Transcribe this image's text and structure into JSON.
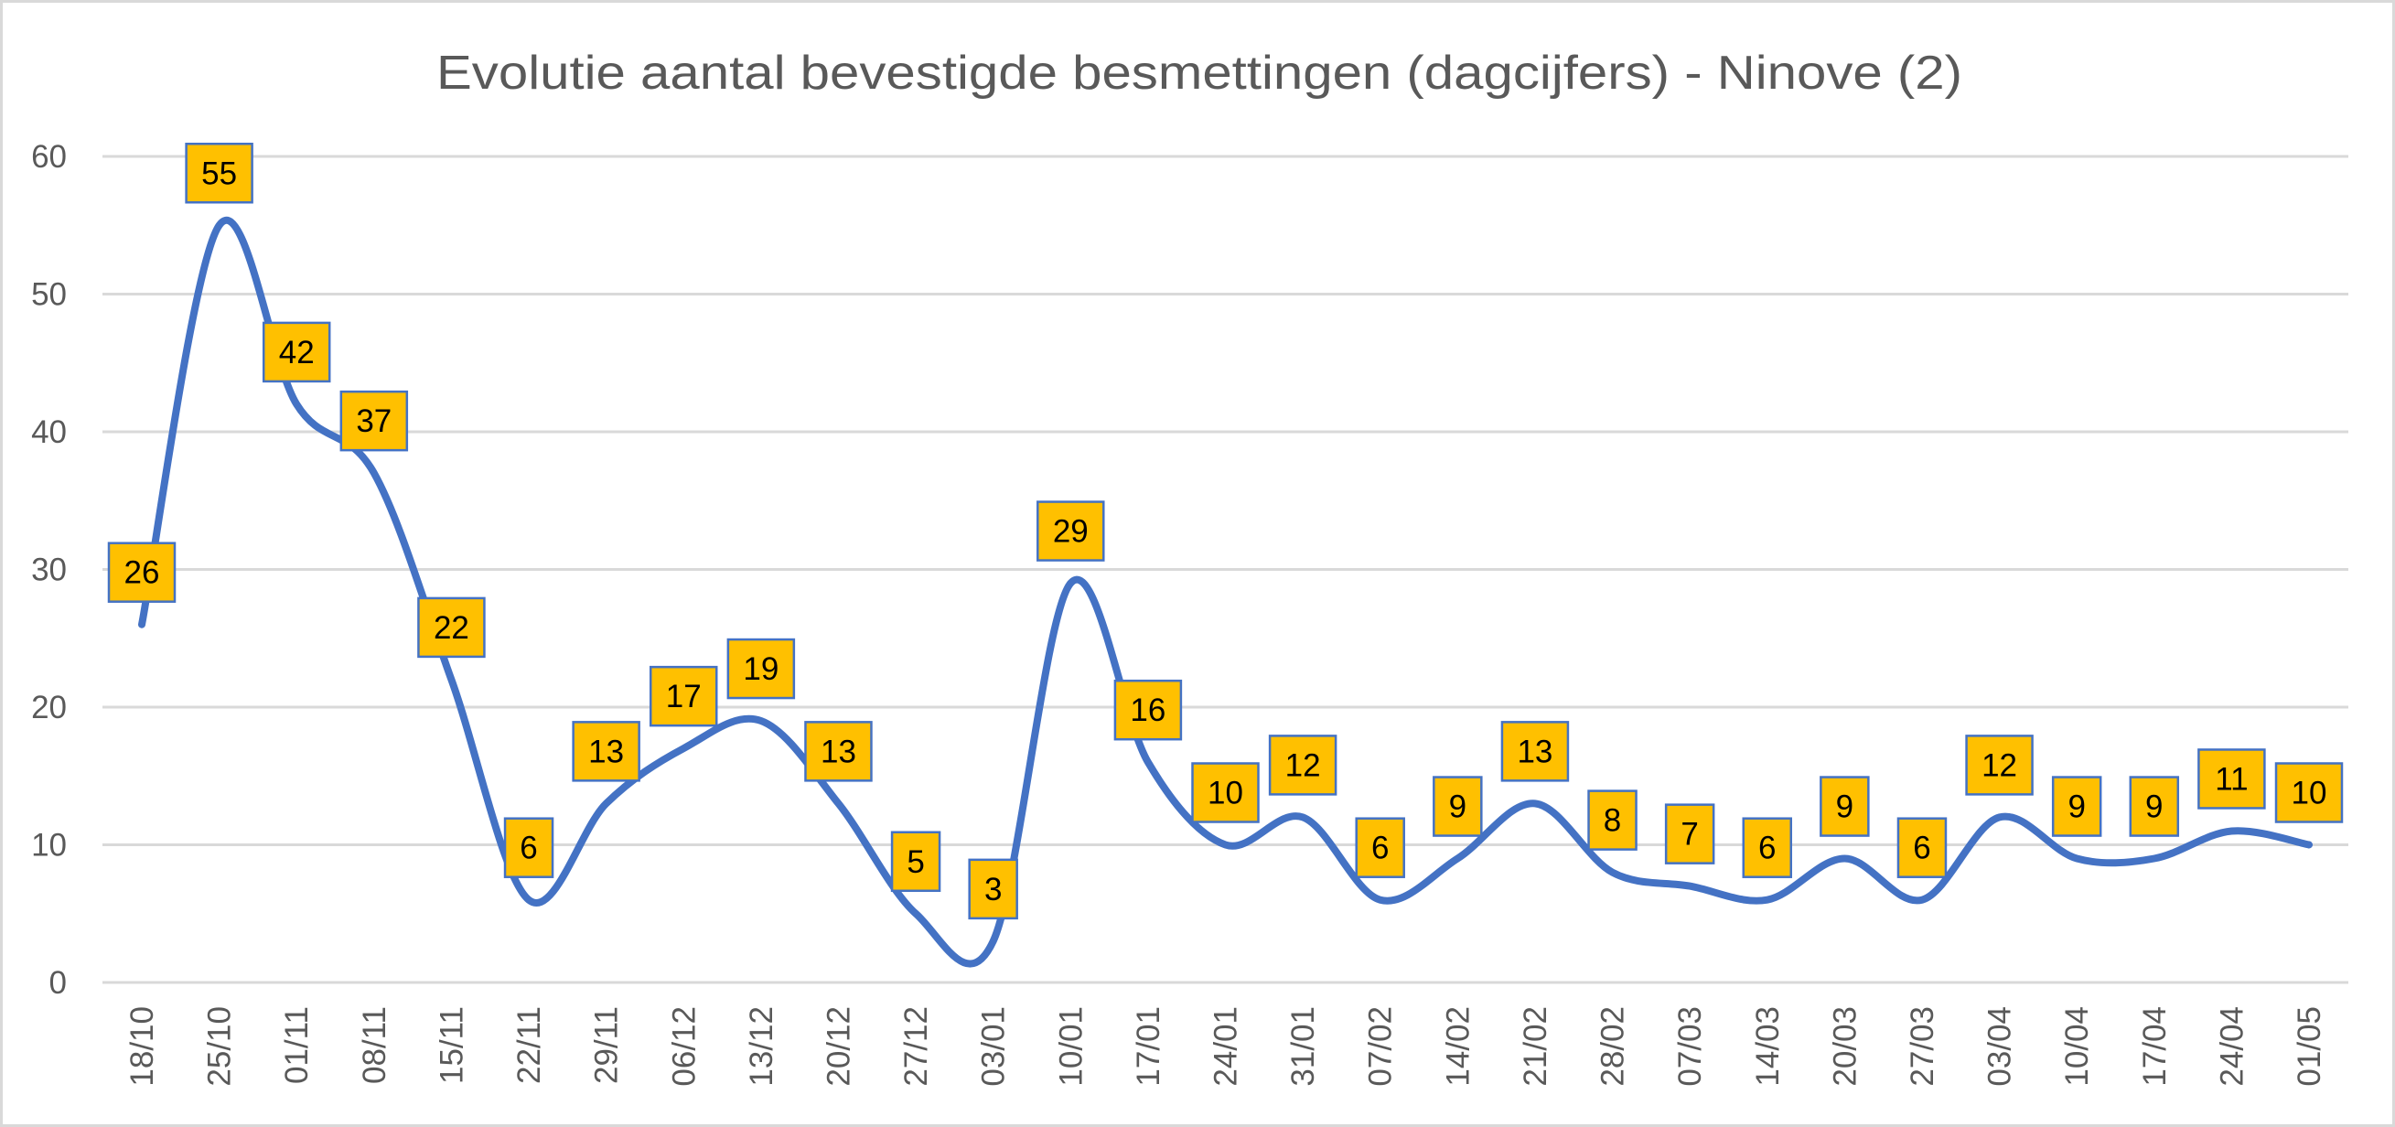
{
  "chart_data": {
    "type": "line",
    "title": "Evolutie aantal bevestigde besmettingen (dagcijfers) - Ninove (2)",
    "xlabel": "",
    "ylabel": "",
    "ylim": [
      0,
      60
    ],
    "yticks": [
      "0",
      "10",
      "20",
      "30",
      "40",
      "50",
      "60"
    ],
    "grid": true,
    "smooth": true,
    "data_labels": true,
    "legend": "none",
    "categories": [
      "18/10",
      "25/10",
      "01/11",
      "08/11",
      "15/11",
      "22/11",
      "29/11",
      "06/12",
      "13/12",
      "20/12",
      "27/12",
      "03/01",
      "10/01",
      "17/01",
      "24/01",
      "31/01",
      "07/02",
      "14/02",
      "21/02",
      "28/02",
      "07/03",
      "14/03",
      "20/03",
      "27/03",
      "03/04",
      "10/04",
      "17/04",
      "24/04",
      "01/05"
    ],
    "series": [
      {
        "name": "Bevestigde besmettingen",
        "color": "#4472C4",
        "label_fill": "#FFC000",
        "values": [
          26,
          55,
          42,
          37,
          22,
          6,
          13,
          17,
          19,
          13,
          5,
          3,
          29,
          16,
          10,
          12,
          6,
          9,
          13,
          8,
          7,
          6,
          9,
          6,
          12,
          9,
          9,
          11,
          10
        ]
      }
    ]
  }
}
